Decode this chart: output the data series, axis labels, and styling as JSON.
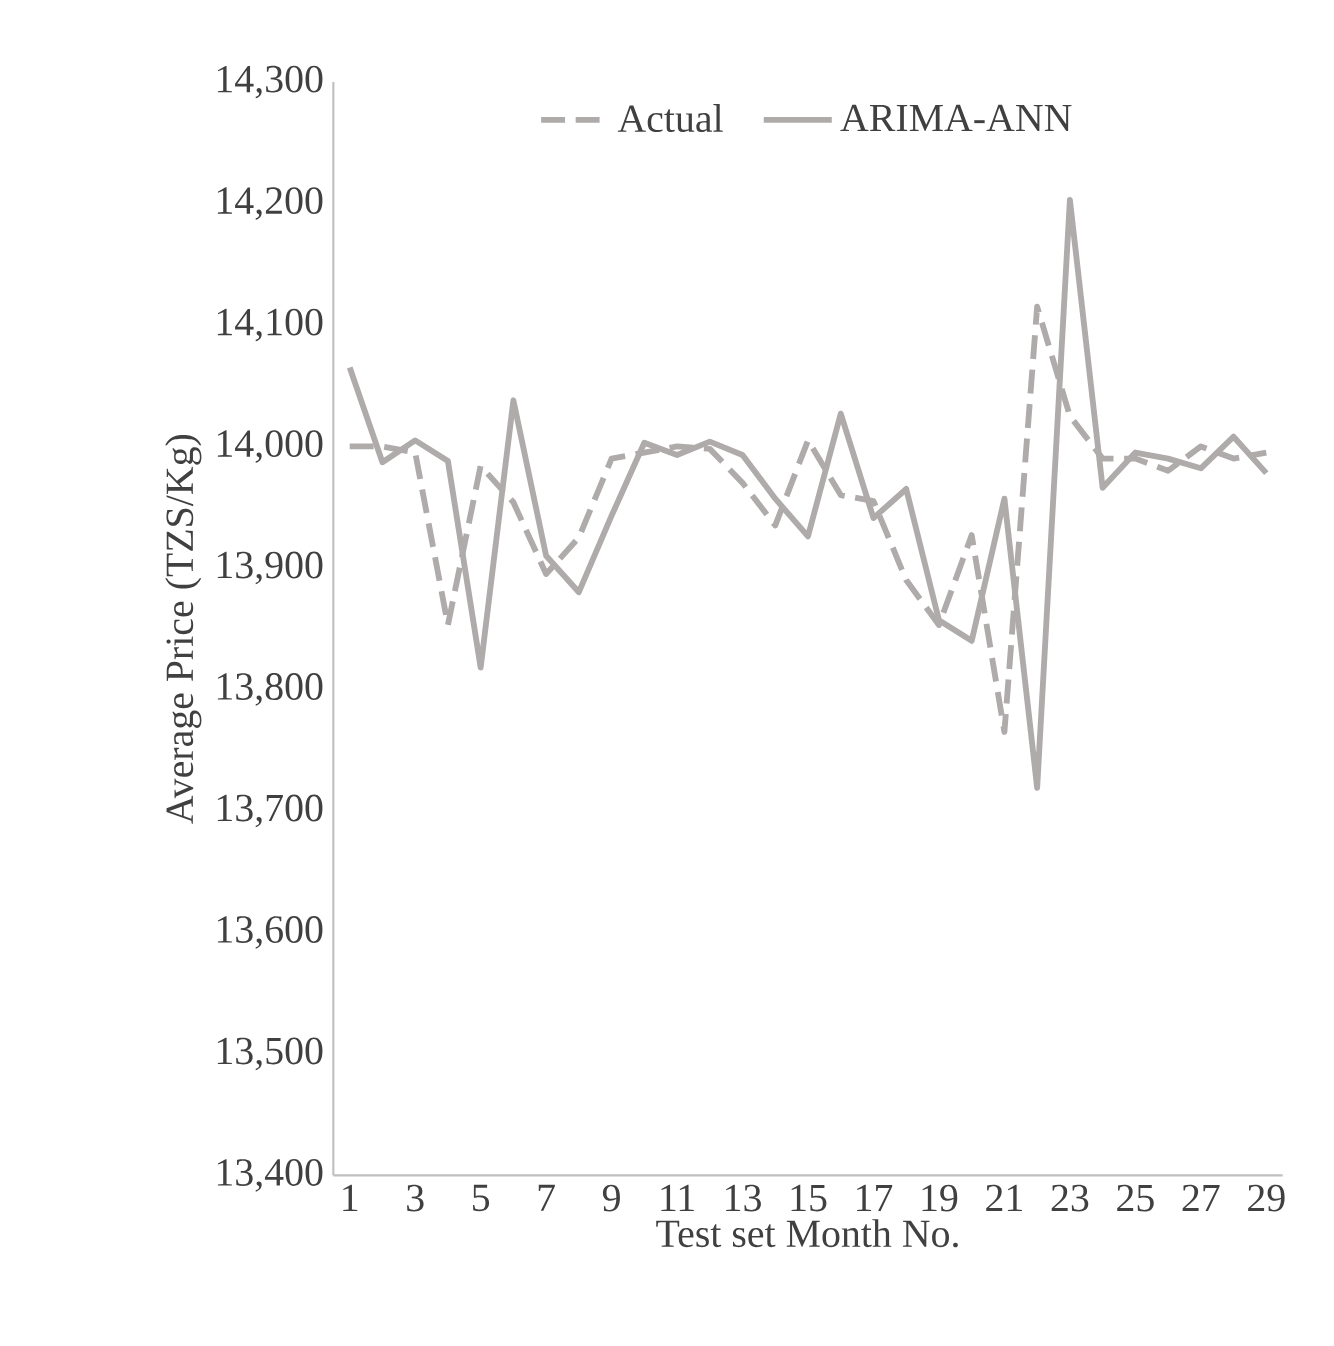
{
  "chart_data": {
    "type": "line",
    "xlabel": "Test set Month No.",
    "ylabel": "Average Price (TZS/Kg)",
    "categories": [
      "1",
      null,
      "3",
      null,
      "5",
      null,
      "7",
      null,
      "9",
      null,
      "11",
      null,
      "13",
      null,
      "15",
      null,
      "17",
      null,
      "19",
      null,
      "21",
      null,
      "23",
      null,
      "25",
      null,
      "27",
      null,
      "29"
    ],
    "series": [
      {
        "name": "Actual",
        "color": "#afabab",
        "line_style": "dashed",
        "values": [
          14000,
          14000,
          13995,
          13853,
          13984,
          13954,
          13895,
          13925,
          13990,
          13995,
          14000,
          13998,
          13970,
          13935,
          14005,
          13960,
          13955,
          13890,
          13853,
          13927,
          13765,
          14115,
          14025,
          13990,
          13990,
          13980,
          14000,
          13990,
          13995
        ]
      },
      {
        "name": "ARIMA-ANN",
        "color": "#afabab",
        "line_style": "solid",
        "values": [
          14065,
          13987,
          14005,
          13988,
          13818,
          14038,
          13910,
          13880,
          13943,
          14003,
          13993,
          14004,
          13993,
          13957,
          13926,
          14027,
          13941,
          13965,
          13857,
          13840,
          13957,
          13719,
          14203,
          13966,
          13995,
          13990,
          13982,
          14008,
          13978
        ]
      }
    ],
    "ylim": [
      13400,
      14300
    ],
    "yticks": [
      {
        "value": 13400,
        "label": "13,400"
      },
      {
        "value": 13500,
        "label": "13,500"
      },
      {
        "value": 13600,
        "label": "13,600"
      },
      {
        "value": 13700,
        "label": "13,700"
      },
      {
        "value": 13800,
        "label": "13,800"
      },
      {
        "value": 13900,
        "label": "13,900"
      },
      {
        "value": 14000,
        "label": "14,000"
      },
      {
        "value": 14100,
        "label": "14,100"
      },
      {
        "value": 14200,
        "label": "14,200"
      },
      {
        "value": 14300,
        "label": "14,300"
      }
    ],
    "grid": false,
    "legend": "top",
    "marker": "none"
  }
}
